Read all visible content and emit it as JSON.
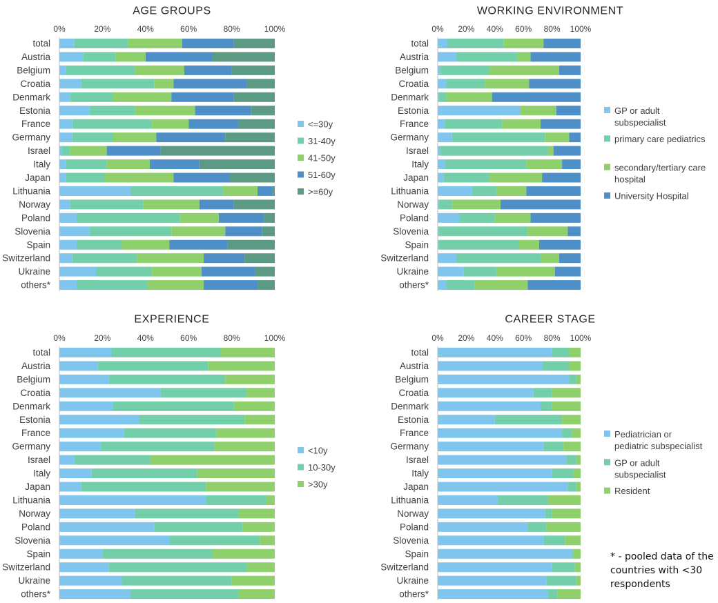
{
  "colors": {
    "c1": "#7fc5ee",
    "c2": "#72cfa9",
    "c3": "#8fd06c",
    "c4": "#4f8fc8",
    "c5": "#5c9a84",
    "axis": "#bfbfbf",
    "text": "#404040",
    "title": "#262626"
  },
  "footnote": "* - pooled data of the countries with <30 respondents",
  "chart_data": [
    {
      "id": "age",
      "type": "bar",
      "orientation": "horizontal",
      "stacked": "percent",
      "title": "AGE GROUPS",
      "xlim": [
        0,
        100
      ],
      "ticks": [
        "0%",
        "20%",
        "40%",
        "60%",
        "80%",
        "100%"
      ],
      "categories": [
        "total",
        "Austria",
        "Belgium",
        "Croatia",
        "Denmark",
        "Estonia",
        "France",
        "Germany",
        "Israel",
        "Italy",
        "Japan",
        "Lithuania",
        "Norway",
        "Poland",
        "Slovenia",
        "Spain",
        "Switzerland",
        "Ukraine",
        "others*"
      ],
      "series": [
        {
          "name": "<=30y",
          "color": "c1",
          "values": [
            7,
            11,
            3,
            10,
            5,
            14,
            6,
            6,
            1,
            3,
            3,
            33,
            5,
            8,
            14,
            8,
            6,
            17,
            8
          ]
        },
        {
          "name": "31-40y",
          "color": "c2",
          "values": [
            25,
            15,
            32,
            34,
            20,
            21,
            37,
            19,
            4,
            19,
            18,
            43,
            34,
            48,
            38,
            21,
            30,
            26,
            33
          ]
        },
        {
          "name": "41-50y",
          "color": "c3",
          "values": [
            25,
            14,
            23,
            9,
            27,
            28,
            17,
            20,
            17,
            20,
            32,
            16,
            26,
            18,
            25,
            22,
            31,
            23,
            26
          ]
        },
        {
          "name": "51-60y",
          "color": "c4",
          "values": [
            24,
            31,
            22,
            34,
            29,
            26,
            23,
            32,
            25,
            23,
            26,
            7,
            16,
            21,
            17,
            27,
            19,
            25,
            25
          ]
        },
        {
          "name": ">=60y",
          "color": "c5",
          "values": [
            19,
            29,
            20,
            13,
            19,
            11,
            17,
            23,
            53,
            35,
            21,
            1,
            19,
            5,
            6,
            22,
            14,
            9,
            8
          ]
        }
      ]
    },
    {
      "id": "work",
      "type": "bar",
      "orientation": "horizontal",
      "stacked": "percent",
      "title": "WORKING ENVIRONMENT",
      "xlim": [
        0,
        100
      ],
      "ticks": [
        "0%",
        "20%",
        "40%",
        "60%",
        "80%",
        "100%"
      ],
      "categories": [
        "total",
        "Austria",
        "Belgium",
        "Croatia",
        "Denmark",
        "Estonia",
        "France",
        "Germany",
        "Israel",
        "Italy",
        "Japan",
        "Lithuania",
        "Norway",
        "Poland",
        "Slovenia",
        "Spain",
        "Switzerland",
        "Ukraine",
        "others*"
      ],
      "series": [
        {
          "name": "GP or adult subspecialist",
          "color": "c1",
          "values": [
            7,
            13,
            2,
            6,
            1,
            58,
            5,
            10,
            2,
            5,
            4,
            24,
            1,
            15,
            1,
            1,
            13,
            18,
            6
          ]
        },
        {
          "name": "primary care pediatrics",
          "color": "c2",
          "values": [
            39,
            43,
            34,
            27,
            5,
            0,
            40,
            65,
            75,
            57,
            32,
            17,
            9,
            25,
            62,
            56,
            59,
            23,
            20
          ]
        },
        {
          "name": "secondary/tertiary care hospital",
          "color": "c3",
          "values": [
            28,
            9,
            49,
            31,
            32,
            25,
            27,
            17,
            4,
            25,
            37,
            21,
            34,
            25,
            28,
            14,
            13,
            41,
            37
          ]
        },
        {
          "name": "University Hospital",
          "color": "c4",
          "values": [
            26,
            35,
            15,
            36,
            62,
            17,
            28,
            8,
            19,
            13,
            27,
            38,
            56,
            35,
            9,
            29,
            15,
            18,
            37
          ]
        }
      ]
    },
    {
      "id": "exp",
      "type": "bar",
      "orientation": "horizontal",
      "stacked": "percent",
      "title": "EXPERIENCE",
      "xlim": [
        0,
        100
      ],
      "ticks": [
        "0%",
        "20%",
        "40%",
        "60%",
        "80%",
        "100%"
      ],
      "categories": [
        "total",
        "Austria",
        "Belgium",
        "Croatia",
        "Denmark",
        "Estonia",
        "France",
        "Germany",
        "Israel",
        "Italy",
        "Japan",
        "Lithuania",
        "Norway",
        "Poland",
        "Slovenia",
        "Spain",
        "Switzerland",
        "Ukraine",
        "others*"
      ],
      "series": [
        {
          "name": "<10y",
          "color": "c1",
          "values": [
            24,
            18,
            23,
            47,
            25,
            37,
            30,
            19,
            7,
            15,
            10,
            68,
            35,
            44,
            51,
            20,
            23,
            29,
            33
          ]
        },
        {
          "name": "10-30y",
          "color": "c2",
          "values": [
            51,
            51,
            54,
            40,
            56,
            49,
            43,
            53,
            35,
            49,
            58,
            28,
            48,
            41,
            42,
            51,
            64,
            51,
            50
          ]
        },
        {
          "name": ">30y",
          "color": "c3",
          "values": [
            25,
            31,
            23,
            13,
            19,
            14,
            27,
            28,
            58,
            36,
            32,
            4,
            17,
            15,
            7,
            29,
            13,
            20,
            17
          ]
        }
      ]
    },
    {
      "id": "career",
      "type": "bar",
      "orientation": "horizontal",
      "stacked": "percent",
      "title": "CAREER STAGE",
      "xlim": [
        0,
        100
      ],
      "ticks": [
        "0%",
        "20%",
        "40%",
        "60%",
        "80%",
        "100%"
      ],
      "categories": [
        "total",
        "Austria",
        "Belgium",
        "Croatia",
        "Denmark",
        "Estonia",
        "France",
        "Germany",
        "Israel",
        "Italy",
        "Japan",
        "Lithuania",
        "Norway",
        "Poland",
        "Slovenia",
        "Spain",
        "Switzerland",
        "Ukraine",
        "others*"
      ],
      "series": [
        {
          "name": "Pediatrician or pediatric subspecialist",
          "color": "c1",
          "values": [
            80,
            73,
            92,
            67,
            72,
            40,
            87,
            74,
            90,
            80,
            91,
            42,
            75,
            63,
            74,
            94,
            80,
            76,
            77
          ]
        },
        {
          "name": "GP or adult subspecialist",
          "color": "c2",
          "values": [
            12,
            19,
            5,
            13,
            8,
            47,
            7,
            14,
            7,
            15,
            6,
            35,
            5,
            13,
            15,
            1,
            16,
            21,
            7
          ]
        },
        {
          "name": "Resident",
          "color": "c3",
          "values": [
            8,
            8,
            3,
            20,
            20,
            13,
            6,
            12,
            3,
            5,
            3,
            23,
            20,
            24,
            11,
            5,
            4,
            3,
            16
          ]
        }
      ]
    }
  ]
}
